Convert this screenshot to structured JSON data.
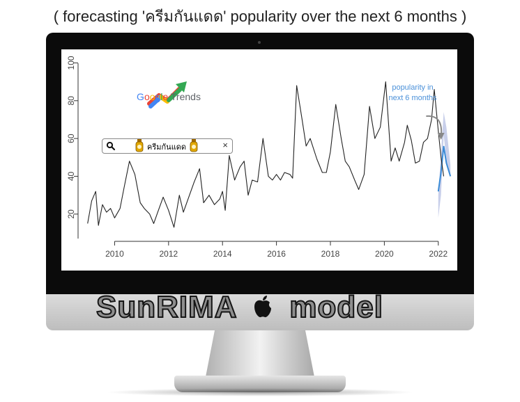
{
  "caption": "( forecasting 'ครีมกันแดด' popularity over the next 6 months )",
  "logo": {
    "google": "Google",
    "trends": "Trends",
    "icon": "trends-arrow-icon"
  },
  "search": {
    "term": "ครีมกันแดด",
    "icon": "search-icon",
    "close": "×"
  },
  "annotation": {
    "line1": "popularity in",
    "line2": "next 6 months"
  },
  "model_label": "SunRIMA",
  "model_suffix": "model",
  "apple_icon": "apple-icon",
  "colors": {
    "history": "#222222",
    "forecast": "#3a8ad6",
    "band": "#9ba8d8",
    "annotation": "#4a90d9"
  },
  "chart_data": {
    "type": "line",
    "title": "",
    "xlabel": "",
    "ylabel": "",
    "xlim": [
      2008.8,
      2022.6
    ],
    "ylim": [
      10,
      102
    ],
    "xticks": [
      "2010",
      "2012",
      "2014",
      "2016",
      "2018",
      "2020",
      "2022"
    ],
    "yticks": [
      "20",
      "40",
      "60",
      "80",
      "100"
    ],
    "grid": false,
    "legend": "none",
    "series": [
      {
        "values": [
          [
            2009.0,
            15
          ],
          [
            2009.15,
            27
          ],
          [
            2009.3,
            32
          ],
          [
            2009.4,
            14
          ],
          [
            2009.55,
            25
          ],
          [
            2009.7,
            21
          ],
          [
            2009.85,
            23
          ],
          [
            2010.0,
            18
          ],
          [
            2010.2,
            23
          ],
          [
            2010.35,
            34
          ],
          [
            2010.55,
            48
          ],
          [
            2010.75,
            41
          ],
          [
            2010.95,
            26
          ],
          [
            2011.1,
            23
          ],
          [
            2011.3,
            20
          ],
          [
            2011.45,
            15
          ],
          [
            2011.6,
            21
          ],
          [
            2011.8,
            29
          ],
          [
            2012.0,
            22
          ],
          [
            2012.2,
            13
          ],
          [
            2012.4,
            30
          ],
          [
            2012.55,
            21
          ],
          [
            2012.75,
            29
          ],
          [
            2012.95,
            37
          ],
          [
            2013.15,
            44
          ],
          [
            2013.3,
            26
          ],
          [
            2013.5,
            30
          ],
          [
            2013.7,
            25
          ],
          [
            2013.9,
            28
          ],
          [
            2014.0,
            32
          ],
          [
            2014.1,
            22
          ],
          [
            2014.25,
            51
          ],
          [
            2014.45,
            38
          ],
          [
            2014.65,
            45
          ],
          [
            2014.8,
            48
          ],
          [
            2014.95,
            30
          ],
          [
            2015.1,
            38
          ],
          [
            2015.3,
            37
          ],
          [
            2015.5,
            60
          ],
          [
            2015.7,
            40
          ],
          [
            2015.85,
            38
          ],
          [
            2016.0,
            41
          ],
          [
            2016.15,
            38
          ],
          [
            2016.3,
            42
          ],
          [
            2016.5,
            41
          ],
          [
            2016.6,
            39
          ],
          [
            2016.75,
            88
          ],
          [
            2016.95,
            70
          ],
          [
            2017.1,
            56
          ],
          [
            2017.25,
            60
          ],
          [
            2017.5,
            49
          ],
          [
            2017.7,
            42
          ],
          [
            2017.85,
            42
          ],
          [
            2018.0,
            53
          ],
          [
            2018.2,
            78
          ],
          [
            2018.4,
            60
          ],
          [
            2018.55,
            48
          ],
          [
            2018.7,
            45
          ],
          [
            2018.9,
            38
          ],
          [
            2019.05,
            33
          ],
          [
            2019.25,
            41
          ],
          [
            2019.45,
            77
          ],
          [
            2019.65,
            60
          ],
          [
            2019.85,
            66
          ],
          [
            2020.05,
            90
          ],
          [
            2020.25,
            48
          ],
          [
            2020.4,
            55
          ],
          [
            2020.55,
            48
          ],
          [
            2020.75,
            58
          ],
          [
            2020.85,
            67
          ],
          [
            2021.0,
            59
          ],
          [
            2021.15,
            47
          ],
          [
            2021.3,
            48
          ],
          [
            2021.45,
            58
          ],
          [
            2021.6,
            60
          ],
          [
            2021.75,
            70
          ],
          [
            2021.85,
            86
          ],
          [
            2022.0,
            64
          ],
          [
            2022.1,
            50
          ],
          [
            2022.2,
            40
          ]
        ]
      }
    ]
  }
}
